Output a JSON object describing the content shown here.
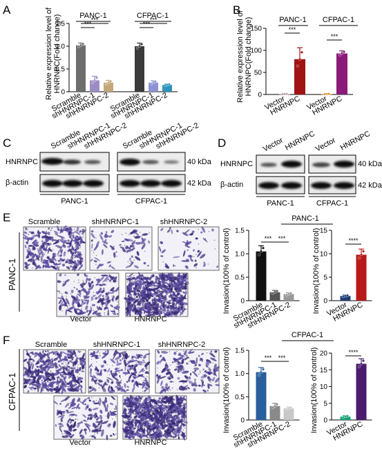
{
  "panels": {
    "A": {
      "letter": "A",
      "ylabel_line1": "Relative expression level of",
      "ylabel_line2": "HNRNPC(Fold change)",
      "groups": [
        "PANC-1",
        "CFPAC-1"
      ],
      "categories": [
        "Scramble",
        "shHNRNPC-1",
        "shHNRNPC-2"
      ],
      "sig": "***"
    },
    "B": {
      "letter": "B",
      "ylabel_line1": "Relative expression level of",
      "ylabel_line2": "HNRNPC(Fold change)",
      "groups": [
        "PANC-1",
        "CFPAC-1"
      ],
      "categories": [
        "Vector",
        "HNRNPC"
      ],
      "sig": "***"
    },
    "C": {
      "letter": "C",
      "lanes": [
        "Scramble",
        "shHNRNPC-1",
        "shHNRNPC-2"
      ],
      "rows": [
        "HNRNPC",
        "β-actin"
      ],
      "kda": [
        "40 kDa",
        "42 kDa"
      ],
      "cells": [
        "PANC-1",
        "CFPAC-1"
      ]
    },
    "D": {
      "letter": "D",
      "lanes": [
        "Vector",
        "HNRNPC"
      ],
      "rows": [
        "HNRNPC",
        "β-actin"
      ],
      "kda": [
        "40 kDa",
        "42 kDa"
      ],
      "cells": [
        "PANC-1",
        "CFPAC-1"
      ]
    },
    "E": {
      "letter": "E",
      "cell_line": "PANC-1",
      "images_top": [
        "Scramble",
        "shHNRNPC-1",
        "shHNRNPC-2"
      ],
      "images_bottom": [
        "Vector",
        "HNRNPC"
      ],
      "ylabel": "Invasion(100% of control)",
      "group_title": "PANC-1",
      "sig1": "***",
      "sig2": "****"
    },
    "F": {
      "letter": "F",
      "cell_line": "CFPAC-1",
      "images_top": [
        "Scramble",
        "shHNRNPC-1",
        "shHNRNPC-2"
      ],
      "images_bottom": [
        "Vector",
        "HNRNPC"
      ],
      "ylabel": "Invasion(100% of control)",
      "group_title": "CFPAC-1",
      "sig1": "***",
      "sig2": "****"
    }
  },
  "chart_data": [
    {
      "id": "A",
      "type": "bar",
      "ylim": [
        0,
        1.5
      ],
      "yticks": [
        0,
        0.5,
        1.0,
        1.5
      ],
      "categories": [
        "Scramble",
        "shHNRNPC-1",
        "shHNRNPC-2",
        "Scramble",
        "shHNRNPC-1",
        "shHNRNPC-2"
      ],
      "values": [
        1.02,
        0.25,
        0.2,
        1.0,
        0.2,
        0.15
      ],
      "errors": [
        0.05,
        0.09,
        0.05,
        0.07,
        0.04,
        0.02
      ],
      "colors": [
        "#6e6e6e",
        "#9d8cc4",
        "#c4a77a",
        "#3a3a3a",
        "#8c94d6",
        "#2f93bb"
      ],
      "sig": "***"
    },
    {
      "id": "B",
      "type": "bar",
      "ylim": [
        0,
        150
      ],
      "yticks": [
        0,
        50,
        100,
        150
      ],
      "categories": [
        "Vector",
        "HNRNPC",
        "Vector",
        "HNRNPC"
      ],
      "values": [
        1,
        80,
        1,
        93
      ],
      "errors": [
        0.5,
        26,
        0.5,
        6
      ],
      "colors": [
        "#c2a0a0",
        "#a01414",
        "#e09a3a",
        "#8a1b78"
      ],
      "sig": "***"
    },
    {
      "id": "E1",
      "type": "bar",
      "ylim": [
        0,
        1.5
      ],
      "yticks": [
        0,
        0.5,
        1.0,
        1.5
      ],
      "categories": [
        "Scramble",
        "shHNRNPC-1",
        "shHNRNPC-2"
      ],
      "values": [
        1.05,
        0.18,
        0.14
      ],
      "errors": [
        0.12,
        0.04,
        0.03
      ],
      "colors": [
        "#111111",
        "#555555",
        "#999999"
      ],
      "sig": "***"
    },
    {
      "id": "E2",
      "type": "bar",
      "ylim": [
        0,
        15
      ],
      "yticks": [
        0,
        5,
        10,
        15
      ],
      "categories": [
        "Vector",
        "HNRNPC"
      ],
      "values": [
        1,
        9.8
      ],
      "errors": [
        0.2,
        1.2
      ],
      "colors": [
        "#1f3f77",
        "#b81a1a"
      ],
      "sig": "****"
    },
    {
      "id": "F1",
      "type": "bar",
      "ylim": [
        0,
        1.5
      ],
      "yticks": [
        0,
        0.5,
        1.0,
        1.5
      ],
      "categories": [
        "Scramble",
        "shHNRNPC-1",
        "shHNRNPC-2"
      ],
      "values": [
        1.03,
        0.3,
        0.25
      ],
      "errors": [
        0.1,
        0.06,
        0.03
      ],
      "colors": [
        "#2a5f9e",
        "#8a8a8a",
        "#c8c8c8"
      ],
      "sig": "***"
    },
    {
      "id": "F2",
      "type": "bar",
      "ylim": [
        0,
        20
      ],
      "yticks": [
        0,
        5,
        10,
        15,
        20
      ],
      "categories": [
        "Vector",
        "HNRNPC"
      ],
      "values": [
        1,
        16.8
      ],
      "errors": [
        0.3,
        1.5
      ],
      "colors": [
        "#1aa37a",
        "#4b1b6e"
      ],
      "sig": "****"
    }
  ]
}
